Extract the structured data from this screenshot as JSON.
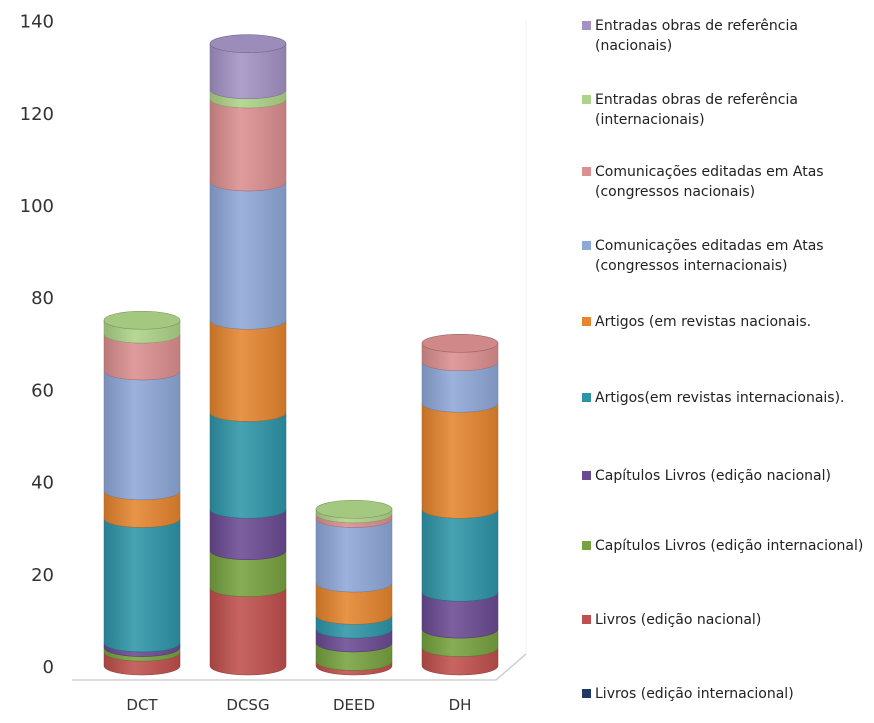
{
  "chart_data": {
    "type": "bar",
    "stacked": true,
    "style": "3d-cylinder",
    "categories": [
      "DCT",
      "DCSG",
      "DEED",
      "DH"
    ],
    "y_ticks": [
      0,
      20,
      40,
      60,
      80,
      100,
      120,
      140
    ],
    "ylim": [
      0,
      140
    ],
    "grid": false,
    "legend_position": "right",
    "series": [
      {
        "name": "Livros (edição internacional)",
        "color": "#1f3864",
        "values": [
          0,
          0,
          0,
          0
        ]
      },
      {
        "name": "Livros (edição nacional)",
        "color": "#c0504d",
        "values": [
          3,
          17,
          1,
          4
        ]
      },
      {
        "name": "Capítulos Livros (edição internacional)",
        "color": "#77a23f",
        "values": [
          1,
          8,
          4,
          4
        ]
      },
      {
        "name": "Capítulos Livros (edição nacional)",
        "color": "#6a4a93",
        "values": [
          1,
          9,
          3,
          8
        ]
      },
      {
        "name": "Artigos(em revistas internacionais).",
        "color": "#2e95a8",
        "values": [
          27,
          21,
          3,
          18
        ]
      },
      {
        "name": "Artigos (em revistas nacionais.",
        "color": "#e5852e",
        "values": [
          6,
          20,
          7,
          23
        ]
      },
      {
        "name": "Comunicações editadas em  Atas (congressos internacionais)",
        "color": "#8ea8d8",
        "values": [
          26,
          30,
          14,
          9
        ]
      },
      {
        "name": "Comunicações editadas em  Atas (congressos nacionais)",
        "color": "#dc8f8f",
        "values": [
          8,
          18,
          1,
          4
        ]
      },
      {
        "name": "Entradas obras de referência (internacionais)",
        "color": "#aed388",
        "values": [
          3,
          2,
          1,
          0
        ]
      },
      {
        "name": "Entradas obras de referência (nacionais)",
        "color": "#a393c4",
        "values": [
          0,
          10,
          0,
          0
        ]
      }
    ]
  }
}
